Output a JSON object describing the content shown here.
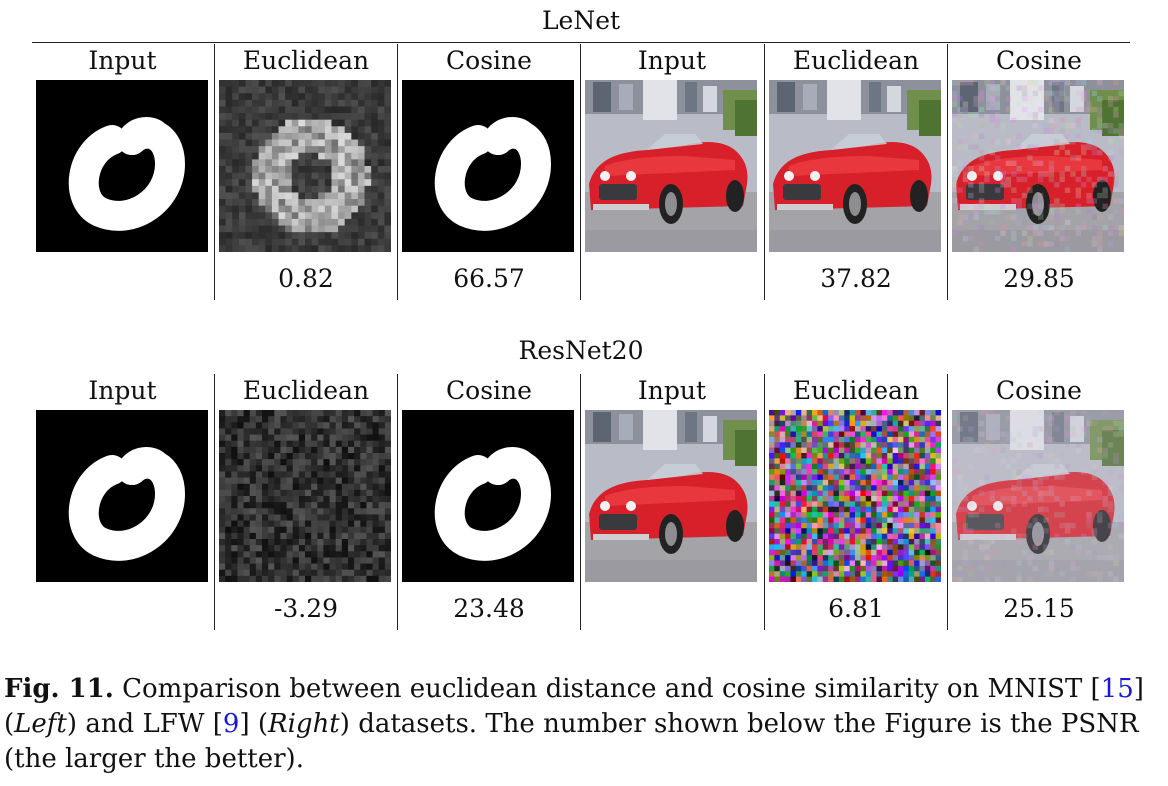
{
  "blocks": [
    {
      "title": "LeNet",
      "columns": [
        {
          "header": "Input",
          "image": "mnist-digit",
          "psnr": ""
        },
        {
          "header": "Euclidean",
          "image": "mnist-noisy-reconstruction",
          "psnr": "0.82"
        },
        {
          "header": "Cosine",
          "image": "mnist-digit",
          "psnr": "66.57"
        },
        {
          "header": "Input",
          "image": "red-car",
          "psnr": ""
        },
        {
          "header": "Euclidean",
          "image": "red-car",
          "psnr": "37.82"
        },
        {
          "header": "Cosine",
          "image": "red-car-noisy",
          "psnr": "29.85"
        }
      ]
    },
    {
      "title": "ResNet20",
      "columns": [
        {
          "header": "Input",
          "image": "mnist-digit",
          "psnr": ""
        },
        {
          "header": "Euclidean",
          "image": "mnist-failed-reconstruction",
          "psnr": "-3.29"
        },
        {
          "header": "Cosine",
          "image": "mnist-digit",
          "psnr": "23.48"
        },
        {
          "header": "Input",
          "image": "red-car",
          "psnr": ""
        },
        {
          "header": "Euclidean",
          "image": "color-noise",
          "psnr": "6.81"
        },
        {
          "header": "Cosine",
          "image": "red-car-faded",
          "psnr": "25.15"
        }
      ]
    }
  ],
  "caption": {
    "label": "Fig. 11.",
    "text_1": "Comparison between euclidean distance and cosine similarity on MNIST [",
    "ref_1": "15",
    "text_2": "]",
    "left_word": "Left",
    "text_3": "and LFW [",
    "ref_2": "9",
    "text_4": "]",
    "right_word": "Right",
    "text_5": "datasets. The number shown below the Figure is the PSNR (the larger the better)."
  }
}
